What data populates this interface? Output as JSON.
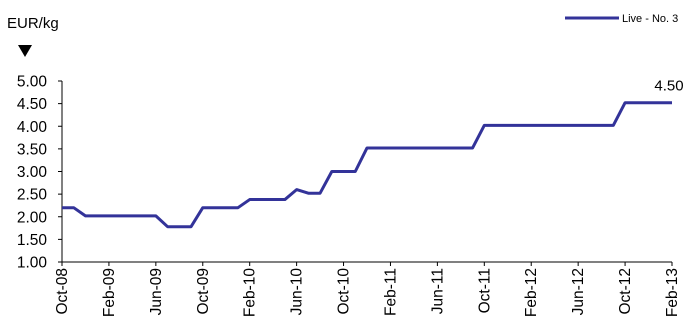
{
  "chart_data": {
    "type": "line",
    "title": "",
    "ylabel": "EUR/kg",
    "xlabel": "",
    "ylim": [
      1.0,
      5.0
    ],
    "yticks": [
      1.0,
      1.5,
      2.0,
      2.5,
      3.0,
      3.5,
      4.0,
      4.5,
      5.0
    ],
    "ytick_labels": [
      "1.00",
      "1.50",
      "2.00",
      "2.50",
      "3.00",
      "3.50",
      "4.00",
      "4.50",
      "5.00"
    ],
    "x_tick_labels": [
      "Oct-08",
      "Feb-09",
      "Jun-09",
      "Oct-09",
      "Feb-10",
      "Jun-10",
      "Oct-10",
      "Feb-11",
      "Jun-11",
      "Oct-11",
      "Feb-12",
      "Jun-12",
      "Oct-12",
      "Feb-13"
    ],
    "x_first": "Oct-08",
    "x_last": "Feb-13",
    "grid": false,
    "legend_position": "top-right",
    "end_label": "4.50",
    "colors": {
      "series": "#333399",
      "axis": "#000000"
    },
    "series": [
      {
        "name": "Live - No. 3",
        "points": [
          [
            "Oct-08",
            2.2
          ],
          [
            "Nov-08",
            2.2
          ],
          [
            "Dec-08",
            2.02
          ],
          [
            "Jan-09",
            2.02
          ],
          [
            "Feb-09",
            2.02
          ],
          [
            "Mar-09",
            2.02
          ],
          [
            "Apr-09",
            2.02
          ],
          [
            "May-09",
            2.02
          ],
          [
            "Jun-09",
            2.02
          ],
          [
            "Jul-09",
            1.78
          ],
          [
            "Aug-09",
            1.78
          ],
          [
            "Sep-09",
            1.78
          ],
          [
            "Oct-09",
            2.2
          ],
          [
            "Nov-09",
            2.2
          ],
          [
            "Dec-09",
            2.2
          ],
          [
            "Jan-10",
            2.2
          ],
          [
            "Feb-10",
            2.38
          ],
          [
            "Mar-10",
            2.38
          ],
          [
            "Apr-10",
            2.38
          ],
          [
            "May-10",
            2.38
          ],
          [
            "Jun-10",
            2.6
          ],
          [
            "Jul-10",
            2.52
          ],
          [
            "Aug-10",
            2.52
          ],
          [
            "Sep-10",
            3.0
          ],
          [
            "Oct-10",
            3.0
          ],
          [
            "Nov-10",
            3.0
          ],
          [
            "Dec-10",
            3.52
          ],
          [
            "Jan-11",
            3.52
          ],
          [
            "Feb-11",
            3.52
          ],
          [
            "Mar-11",
            3.52
          ],
          [
            "Apr-11",
            3.52
          ],
          [
            "May-11",
            3.52
          ],
          [
            "Jun-11",
            3.52
          ],
          [
            "Jul-11",
            3.52
          ],
          [
            "Aug-11",
            3.52
          ],
          [
            "Sep-11",
            3.52
          ],
          [
            "Oct-11",
            4.02
          ],
          [
            "Nov-11",
            4.02
          ],
          [
            "Dec-11",
            4.02
          ],
          [
            "Jan-12",
            4.02
          ],
          [
            "Feb-12",
            4.02
          ],
          [
            "Mar-12",
            4.02
          ],
          [
            "Apr-12",
            4.02
          ],
          [
            "May-12",
            4.02
          ],
          [
            "Jun-12",
            4.02
          ],
          [
            "Jul-12",
            4.02
          ],
          [
            "Aug-12",
            4.02
          ],
          [
            "Sep-12",
            4.02
          ],
          [
            "Oct-12",
            4.52
          ],
          [
            "Nov-12",
            4.52
          ],
          [
            "Dec-12",
            4.52
          ],
          [
            "Jan-13",
            4.52
          ],
          [
            "Feb-13",
            4.52
          ]
        ]
      }
    ]
  }
}
